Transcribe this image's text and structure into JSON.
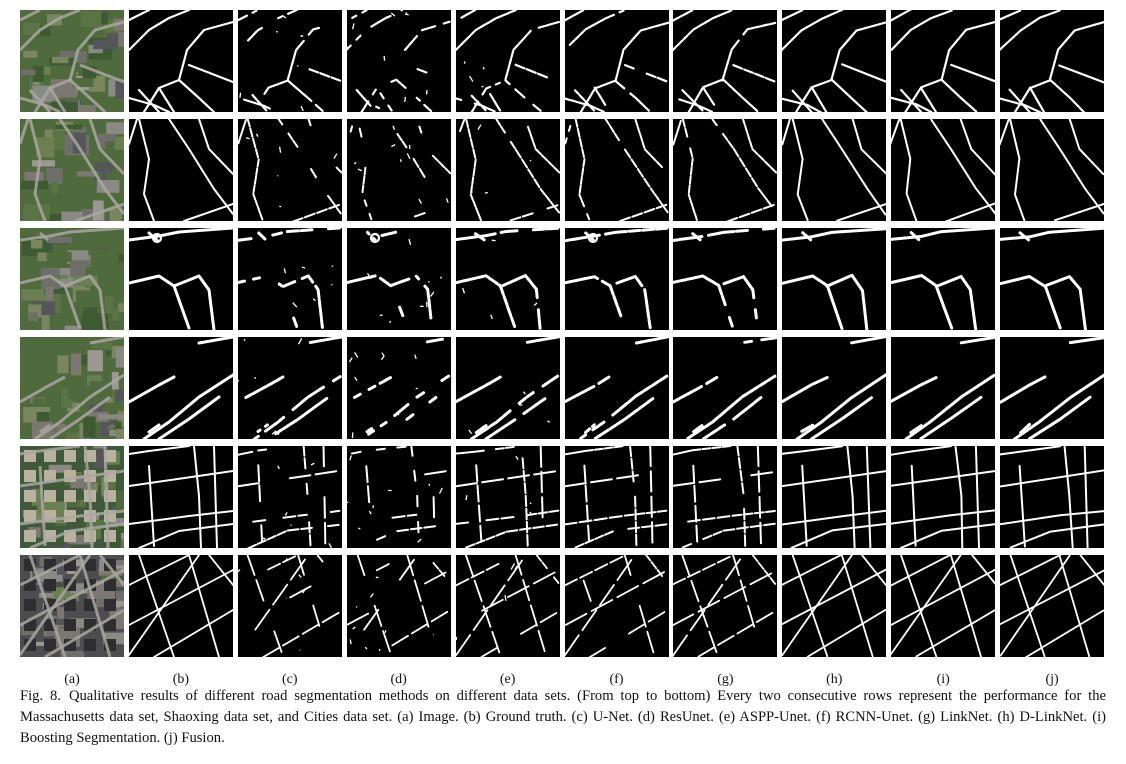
{
  "figure": {
    "column_labels": [
      "(a)",
      "(b)",
      "(c)",
      "(d)",
      "(e)",
      "(f)",
      "(g)",
      "(h)",
      "(i)",
      "(j)"
    ],
    "rows": [
      {
        "dataset": "Massachusetts"
      },
      {
        "dataset": "Massachusetts"
      },
      {
        "dataset": "Shaoxing"
      },
      {
        "dataset": "Shaoxing"
      },
      {
        "dataset": "Cities"
      },
      {
        "dataset": "Cities"
      }
    ],
    "colors": {
      "mask_background": "#000000",
      "road": "#ffffff",
      "aerial_green": "#4f6a3c",
      "aerial_gray": "#6f6f6a"
    }
  },
  "caption": {
    "figure_number": "Fig. 8.",
    "text": "Qualitative results of different road segmentation methods on different data sets. (From top to bottom) Every two consecutive rows represent the performance for the Massachusetts data set, Shaoxing data set, and Cities data set. (a) Image. (b) Ground truth. (c) U-Net. (d) ResUnet. (e) ASPP-Unet. (f) RCNN-Unet. (g) LinkNet. (h) D-LinkNet. (i) Boosting Segmentation. (j) Fusion."
  }
}
